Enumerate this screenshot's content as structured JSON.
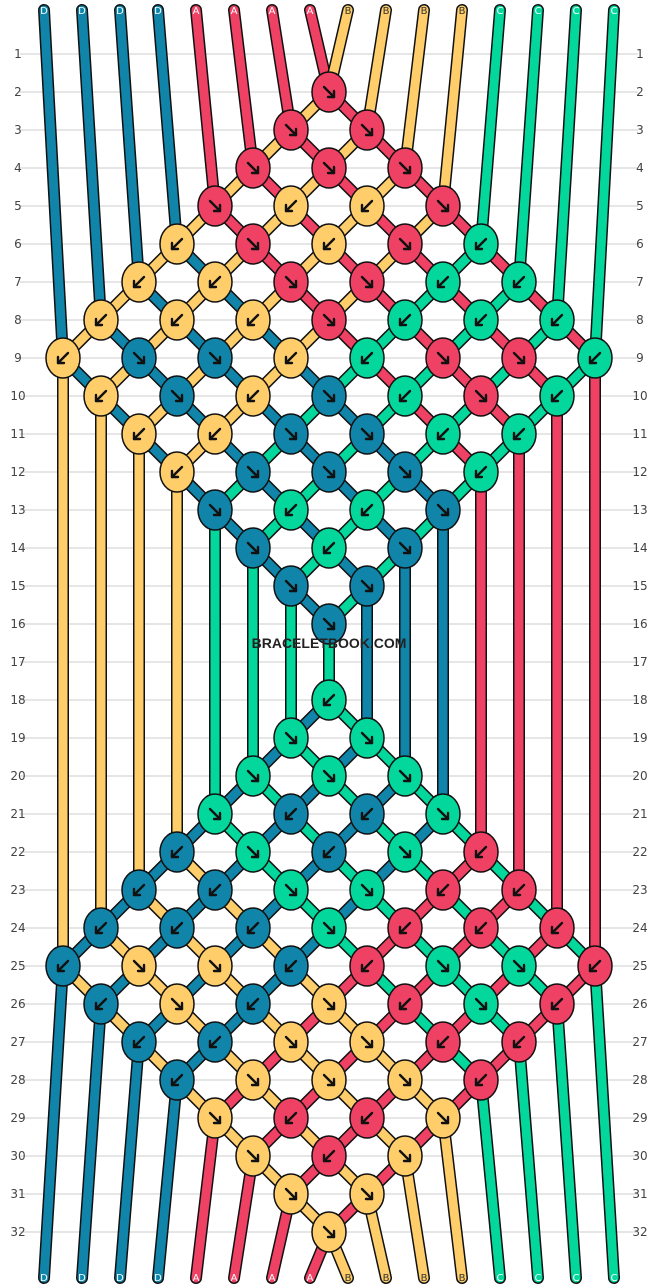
{
  "colors": {
    "A": "#ef4163",
    "B": "#ffce6a",
    "C": "#04d79b",
    "D": "#1085a9"
  },
  "strands_top": [
    "D",
    "D",
    "D",
    "D",
    "A",
    "A",
    "A",
    "A",
    "B",
    "B",
    "B",
    "B",
    "C",
    "C",
    "C",
    "C"
  ],
  "strands_bottom": [
    "D",
    "D",
    "D",
    "D",
    "A",
    "A",
    "A",
    "A",
    "B",
    "B",
    "B",
    "B",
    "C",
    "C",
    "C",
    "C"
  ],
  "row_labels": [
    "1",
    "2",
    "3",
    "4",
    "5",
    "6",
    "7",
    "8",
    "9",
    "10",
    "11",
    "12",
    "13",
    "14",
    "15",
    "16",
    "17",
    "18",
    "19",
    "20",
    "21",
    "22",
    "23",
    "24",
    "25",
    "26",
    "27",
    "28",
    "29",
    "30",
    "31",
    "32"
  ],
  "watermark": "BRACELETBOOK.COM",
  "knots": [
    {
      "row": 2,
      "col": 7,
      "color": "A",
      "dir": "se"
    },
    {
      "row": 3,
      "col": 6,
      "color": "A",
      "dir": "se"
    },
    {
      "row": 3,
      "col": 8,
      "color": "A",
      "dir": "se"
    },
    {
      "row": 4,
      "col": 5,
      "color": "A",
      "dir": "se"
    },
    {
      "row": 4,
      "col": 7,
      "color": "A",
      "dir": "se"
    },
    {
      "row": 4,
      "col": 9,
      "color": "A",
      "dir": "se"
    },
    {
      "row": 5,
      "col": 4,
      "color": "A",
      "dir": "se"
    },
    {
      "row": 5,
      "col": 6,
      "color": "B",
      "dir": "sw"
    },
    {
      "row": 5,
      "col": 8,
      "color": "B",
      "dir": "sw"
    },
    {
      "row": 5,
      "col": 10,
      "color": "A",
      "dir": "se"
    },
    {
      "row": 6,
      "col": 3,
      "color": "B",
      "dir": "sw"
    },
    {
      "row": 6,
      "col": 5,
      "color": "A",
      "dir": "se"
    },
    {
      "row": 6,
      "col": 7,
      "color": "B",
      "dir": "sw"
    },
    {
      "row": 6,
      "col": 9,
      "color": "A",
      "dir": "se"
    },
    {
      "row": 6,
      "col": 11,
      "color": "C",
      "dir": "sw"
    },
    {
      "row": 7,
      "col": 2,
      "color": "B",
      "dir": "sw"
    },
    {
      "row": 7,
      "col": 4,
      "color": "B",
      "dir": "sw"
    },
    {
      "row": 7,
      "col": 6,
      "color": "A",
      "dir": "se"
    },
    {
      "row": 7,
      "col": 8,
      "color": "A",
      "dir": "se"
    },
    {
      "row": 7,
      "col": 10,
      "color": "C",
      "dir": "sw"
    },
    {
      "row": 7,
      "col": 12,
      "color": "C",
      "dir": "sw"
    },
    {
      "row": 8,
      "col": 1,
      "color": "B",
      "dir": "sw"
    },
    {
      "row": 8,
      "col": 3,
      "color": "B",
      "dir": "sw"
    },
    {
      "row": 8,
      "col": 5,
      "color": "B",
      "dir": "sw"
    },
    {
      "row": 8,
      "col": 7,
      "color": "A",
      "dir": "se"
    },
    {
      "row": 8,
      "col": 9,
      "color": "C",
      "dir": "sw"
    },
    {
      "row": 8,
      "col": 11,
      "color": "C",
      "dir": "sw"
    },
    {
      "row": 8,
      "col": 13,
      "color": "C",
      "dir": "sw"
    },
    {
      "row": 9,
      "col": 0,
      "color": "B",
      "dir": "sw"
    },
    {
      "row": 9,
      "col": 2,
      "color": "D",
      "dir": "se"
    },
    {
      "row": 9,
      "col": 4,
      "color": "D",
      "dir": "se"
    },
    {
      "row": 9,
      "col": 6,
      "color": "B",
      "dir": "sw"
    },
    {
      "row": 9,
      "col": 8,
      "color": "C",
      "dir": "sw"
    },
    {
      "row": 9,
      "col": 10,
      "color": "A",
      "dir": "se"
    },
    {
      "row": 9,
      "col": 12,
      "color": "A",
      "dir": "se"
    },
    {
      "row": 9,
      "col": 14,
      "color": "C",
      "dir": "sw"
    },
    {
      "row": 10,
      "col": 1,
      "color": "B",
      "dir": "sw"
    },
    {
      "row": 10,
      "col": 3,
      "color": "D",
      "dir": "se"
    },
    {
      "row": 10,
      "col": 5,
      "color": "B",
      "dir": "sw"
    },
    {
      "row": 10,
      "col": 7,
      "color": "D",
      "dir": "se"
    },
    {
      "row": 10,
      "col": 9,
      "color": "C",
      "dir": "sw"
    },
    {
      "row": 10,
      "col": 11,
      "color": "A",
      "dir": "se"
    },
    {
      "row": 10,
      "col": 13,
      "color": "C",
      "dir": "sw"
    },
    {
      "row": 11,
      "col": 2,
      "color": "B",
      "dir": "sw"
    },
    {
      "row": 11,
      "col": 4,
      "color": "B",
      "dir": "sw"
    },
    {
      "row": 11,
      "col": 6,
      "color": "D",
      "dir": "se"
    },
    {
      "row": 11,
      "col": 8,
      "color": "D",
      "dir": "se"
    },
    {
      "row": 11,
      "col": 10,
      "color": "C",
      "dir": "sw"
    },
    {
      "row": 11,
      "col": 12,
      "color": "C",
      "dir": "sw"
    },
    {
      "row": 12,
      "col": 3,
      "color": "B",
      "dir": "sw"
    },
    {
      "row": 12,
      "col": 5,
      "color": "D",
      "dir": "se"
    },
    {
      "row": 12,
      "col": 7,
      "color": "D",
      "dir": "se"
    },
    {
      "row": 12,
      "col": 9,
      "color": "D",
      "dir": "se"
    },
    {
      "row": 12,
      "col": 11,
      "color": "C",
      "dir": "sw"
    },
    {
      "row": 13,
      "col": 4,
      "color": "D",
      "dir": "se"
    },
    {
      "row": 13,
      "col": 6,
      "color": "C",
      "dir": "sw"
    },
    {
      "row": 13,
      "col": 8,
      "color": "C",
      "dir": "sw"
    },
    {
      "row": 13,
      "col": 10,
      "color": "D",
      "dir": "se"
    },
    {
      "row": 14,
      "col": 5,
      "color": "D",
      "dir": "se"
    },
    {
      "row": 14,
      "col": 7,
      "color": "C",
      "dir": "sw"
    },
    {
      "row": 14,
      "col": 9,
      "color": "D",
      "dir": "se"
    },
    {
      "row": 15,
      "col": 6,
      "color": "D",
      "dir": "se"
    },
    {
      "row": 15,
      "col": 8,
      "color": "D",
      "dir": "se"
    },
    {
      "row": 16,
      "col": 7,
      "color": "D",
      "dir": "se"
    },
    {
      "row": 18,
      "col": 7,
      "color": "C",
      "dir": "sw"
    },
    {
      "row": 19,
      "col": 6,
      "color": "C",
      "dir": "se"
    },
    {
      "row": 19,
      "col": 8,
      "color": "C",
      "dir": "se"
    },
    {
      "row": 20,
      "col": 5,
      "color": "C",
      "dir": "se"
    },
    {
      "row": 20,
      "col": 7,
      "color": "C",
      "dir": "se"
    },
    {
      "row": 20,
      "col": 9,
      "color": "C",
      "dir": "se"
    },
    {
      "row": 21,
      "col": 4,
      "color": "C",
      "dir": "se"
    },
    {
      "row": 21,
      "col": 6,
      "color": "D",
      "dir": "sw"
    },
    {
      "row": 21,
      "col": 8,
      "color": "D",
      "dir": "sw"
    },
    {
      "row": 21,
      "col": 10,
      "color": "C",
      "dir": "se"
    },
    {
      "row": 22,
      "col": 3,
      "color": "D",
      "dir": "sw"
    },
    {
      "row": 22,
      "col": 5,
      "color": "C",
      "dir": "se"
    },
    {
      "row": 22,
      "col": 7,
      "color": "D",
      "dir": "sw"
    },
    {
      "row": 22,
      "col": 9,
      "color": "C",
      "dir": "se"
    },
    {
      "row": 22,
      "col": 11,
      "color": "A",
      "dir": "sw"
    },
    {
      "row": 23,
      "col": 2,
      "color": "D",
      "dir": "sw"
    },
    {
      "row": 23,
      "col": 4,
      "color": "D",
      "dir": "sw"
    },
    {
      "row": 23,
      "col": 6,
      "color": "C",
      "dir": "se"
    },
    {
      "row": 23,
      "col": 8,
      "color": "C",
      "dir": "se"
    },
    {
      "row": 23,
      "col": 10,
      "color": "A",
      "dir": "sw"
    },
    {
      "row": 23,
      "col": 12,
      "color": "A",
      "dir": "sw"
    },
    {
      "row": 24,
      "col": 1,
      "color": "D",
      "dir": "sw"
    },
    {
      "row": 24,
      "col": 3,
      "color": "D",
      "dir": "sw"
    },
    {
      "row": 24,
      "col": 5,
      "color": "D",
      "dir": "sw"
    },
    {
      "row": 24,
      "col": 7,
      "color": "C",
      "dir": "se"
    },
    {
      "row": 24,
      "col": 9,
      "color": "A",
      "dir": "sw"
    },
    {
      "row": 24,
      "col": 11,
      "color": "A",
      "dir": "sw"
    },
    {
      "row": 24,
      "col": 13,
      "color": "A",
      "dir": "sw"
    },
    {
      "row": 25,
      "col": 0,
      "color": "D",
      "dir": "sw"
    },
    {
      "row": 25,
      "col": 2,
      "color": "B",
      "dir": "se"
    },
    {
      "row": 25,
      "col": 4,
      "color": "B",
      "dir": "se"
    },
    {
      "row": 25,
      "col": 6,
      "color": "D",
      "dir": "sw"
    },
    {
      "row": 25,
      "col": 8,
      "color": "A",
      "dir": "sw"
    },
    {
      "row": 25,
      "col": 10,
      "color": "C",
      "dir": "se"
    },
    {
      "row": 25,
      "col": 12,
      "color": "C",
      "dir": "se"
    },
    {
      "row": 25,
      "col": 14,
      "color": "A",
      "dir": "sw"
    },
    {
      "row": 26,
      "col": 1,
      "color": "D",
      "dir": "sw"
    },
    {
      "row": 26,
      "col": 3,
      "color": "B",
      "dir": "se"
    },
    {
      "row": 26,
      "col": 5,
      "color": "D",
      "dir": "sw"
    },
    {
      "row": 26,
      "col": 7,
      "color": "B",
      "dir": "se"
    },
    {
      "row": 26,
      "col": 9,
      "color": "A",
      "dir": "sw"
    },
    {
      "row": 26,
      "col": 11,
      "color": "C",
      "dir": "se"
    },
    {
      "row": 26,
      "col": 13,
      "color": "A",
      "dir": "sw"
    },
    {
      "row": 27,
      "col": 2,
      "color": "D",
      "dir": "sw"
    },
    {
      "row": 27,
      "col": 4,
      "color": "D",
      "dir": "sw"
    },
    {
      "row": 27,
      "col": 6,
      "color": "B",
      "dir": "se"
    },
    {
      "row": 27,
      "col": 8,
      "color": "B",
      "dir": "se"
    },
    {
      "row": 27,
      "col": 10,
      "color": "A",
      "dir": "sw"
    },
    {
      "row": 27,
      "col": 12,
      "color": "A",
      "dir": "sw"
    },
    {
      "row": 28,
      "col": 3,
      "color": "D",
      "dir": "sw"
    },
    {
      "row": 28,
      "col": 5,
      "color": "B",
      "dir": "se"
    },
    {
      "row": 28,
      "col": 7,
      "color": "B",
      "dir": "se"
    },
    {
      "row": 28,
      "col": 9,
      "color": "B",
      "dir": "se"
    },
    {
      "row": 28,
      "col": 11,
      "color": "A",
      "dir": "sw"
    },
    {
      "row": 29,
      "col": 4,
      "color": "B",
      "dir": "se"
    },
    {
      "row": 29,
      "col": 6,
      "color": "A",
      "dir": "sw"
    },
    {
      "row": 29,
      "col": 8,
      "color": "A",
      "dir": "sw"
    },
    {
      "row": 29,
      "col": 10,
      "color": "B",
      "dir": "se"
    },
    {
      "row": 30,
      "col": 5,
      "color": "B",
      "dir": "se"
    },
    {
      "row": 30,
      "col": 7,
      "color": "A",
      "dir": "sw"
    },
    {
      "row": 30,
      "col": 9,
      "color": "B",
      "dir": "se"
    },
    {
      "row": 31,
      "col": 6,
      "color": "B",
      "dir": "se"
    },
    {
      "row": 31,
      "col": 8,
      "color": "B",
      "dir": "se"
    },
    {
      "row": 32,
      "col": 7,
      "color": "B",
      "dir": "se"
    }
  ]
}
